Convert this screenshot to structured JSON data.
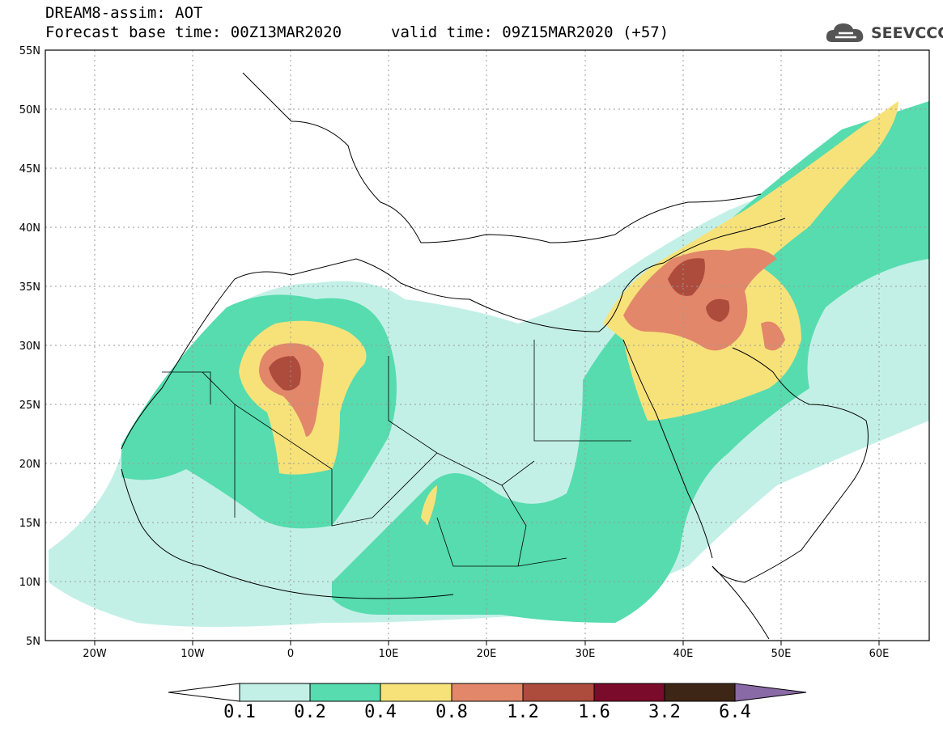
{
  "header": {
    "title_line1": "DREAM8-assim: AOT",
    "title_line2a": "Forecast base time: 00Z13MAR2020",
    "title_line2b": "valid time: 09Z15MAR2020 (+57)",
    "logo_text": "SEEVCCC"
  },
  "map": {
    "lon_labels": [
      "20W",
      "10W",
      "0",
      "10E",
      "20E",
      "30E",
      "40E",
      "50E",
      "60E"
    ],
    "lat_labels": [
      "55N",
      "50N",
      "45N",
      "40N",
      "35N",
      "30N",
      "25N",
      "20N",
      "15N",
      "10N",
      "5N"
    ],
    "lon_range": [
      -25,
      65
    ],
    "lat_range": [
      5,
      55
    ],
    "grid": true,
    "variable": "AOT"
  },
  "colorbar": {
    "labels": [
      "0.1",
      "0.2",
      "0.4",
      "0.8",
      "1.2",
      "1.6",
      "3.2",
      "6.4"
    ],
    "colors": {
      "below": "#ffffff",
      "c1": "#c3f0e6",
      "c2": "#56dcae",
      "c3": "#f7e27a",
      "c4": "#e2876a",
      "c5": "#ad4b3d",
      "c6": "#7b0b2a",
      "c7": "#3e2616",
      "above": "#8a6aa6"
    }
  }
}
